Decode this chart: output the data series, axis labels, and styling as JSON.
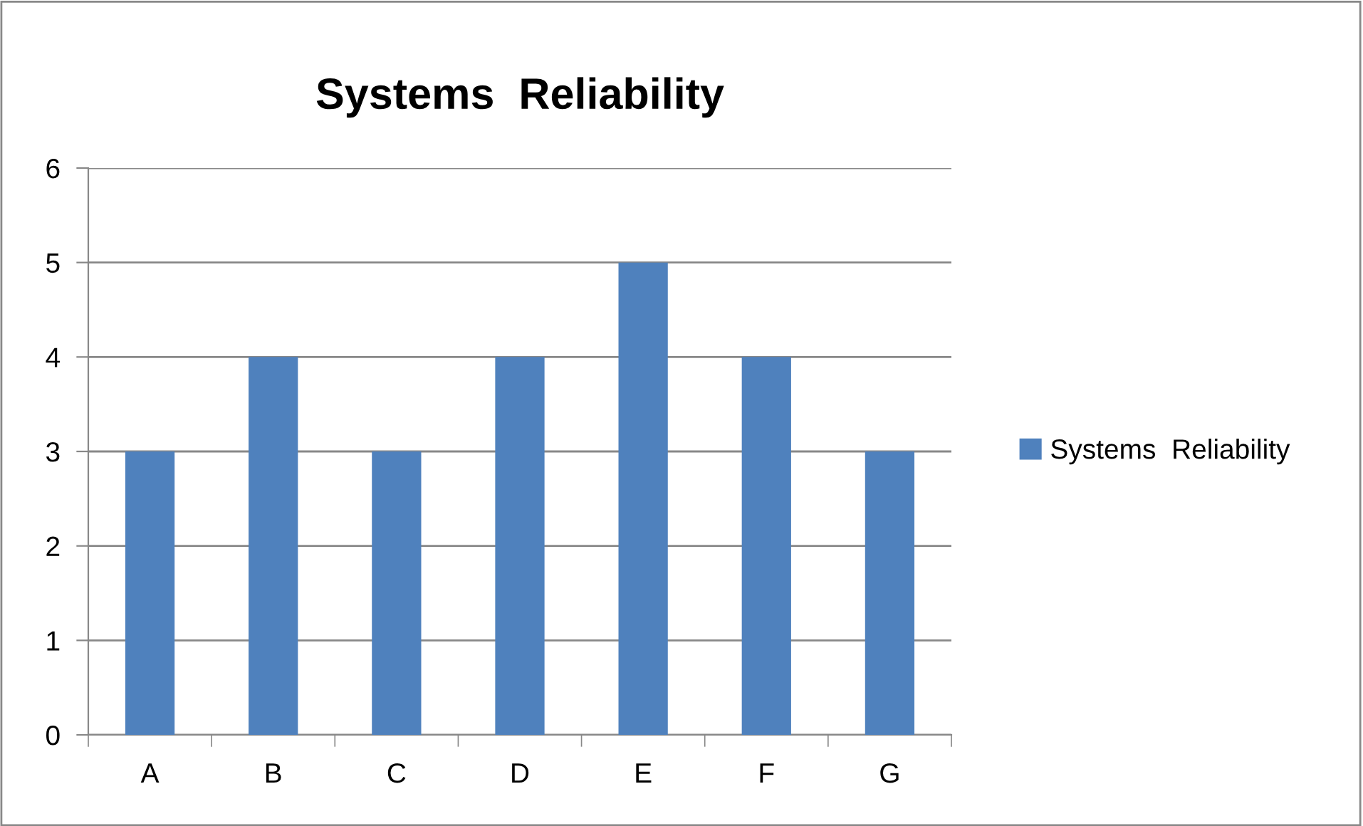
{
  "chart_data": {
    "type": "bar",
    "title": "Systems  Reliability",
    "categories": [
      "A",
      "B",
      "C",
      "D",
      "E",
      "F",
      "G"
    ],
    "series": [
      {
        "name": "Systems  Reliability",
        "color": "#4f81bd",
        "values": [
          3,
          4,
          3,
          4,
          5,
          4,
          3
        ]
      }
    ],
    "ylim": [
      0,
      6
    ],
    "yticks": [
      0,
      1,
      2,
      3,
      4,
      5,
      6
    ],
    "grid": "y",
    "legend": "right"
  }
}
